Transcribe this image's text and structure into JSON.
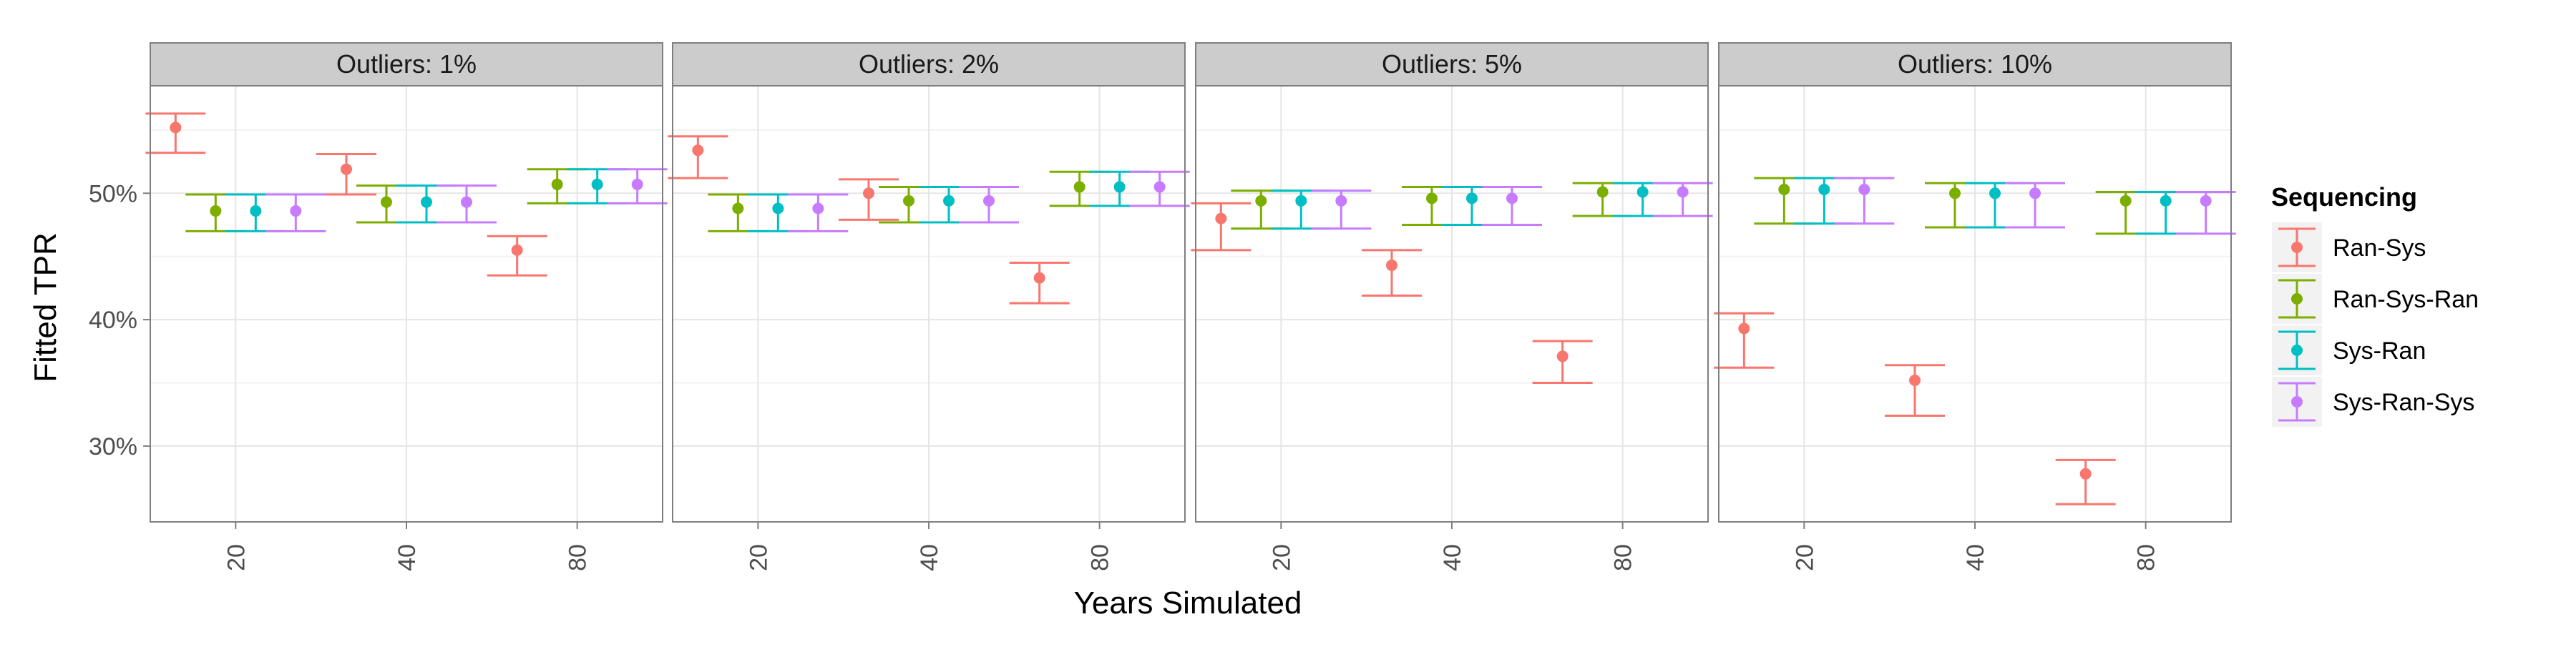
{
  "chart_data": {
    "type": "errorbar",
    "ylabel": "Fitted TPR",
    "xlabel": "Years Simulated",
    "ylim": [
      0.24,
      0.585
    ],
    "y_ticks": [
      0.3,
      0.4,
      0.5
    ],
    "y_tick_labels": [
      "30%",
      "40%",
      "50%"
    ],
    "categories": [
      "20",
      "40",
      "80"
    ],
    "grid": true,
    "legend": {
      "title": "Sequencing",
      "position": "right"
    },
    "colors": {
      "Ran-Sys": "#F8766D",
      "Ran-Sys-Ran": "#7CAE00",
      "Sys-Ran": "#00BFC4",
      "Sys-Ran-Sys": "#C77CFF"
    },
    "panels": [
      {
        "label": "Outliers: 1%",
        "series": [
          {
            "name": "Ran-Sys",
            "points": [
              {
                "x": "20",
                "y": 0.552,
                "lo": 0.532,
                "hi": 0.563
              },
              {
                "x": "40",
                "y": 0.519,
                "lo": 0.499,
                "hi": 0.531
              },
              {
                "x": "80",
                "y": 0.455,
                "lo": 0.435,
                "hi": 0.466
              }
            ]
          },
          {
            "name": "Ran-Sys-Ran",
            "points": [
              {
                "x": "20",
                "y": 0.486,
                "lo": 0.47,
                "hi": 0.499
              },
              {
                "x": "40",
                "y": 0.493,
                "lo": 0.477,
                "hi": 0.506
              },
              {
                "x": "80",
                "y": 0.507,
                "lo": 0.492,
                "hi": 0.519
              }
            ]
          },
          {
            "name": "Sys-Ran",
            "points": [
              {
                "x": "20",
                "y": 0.486,
                "lo": 0.47,
                "hi": 0.499
              },
              {
                "x": "40",
                "y": 0.493,
                "lo": 0.477,
                "hi": 0.506
              },
              {
                "x": "80",
                "y": 0.507,
                "lo": 0.492,
                "hi": 0.519
              }
            ]
          },
          {
            "name": "Sys-Ran-Sys",
            "points": [
              {
                "x": "20",
                "y": 0.486,
                "lo": 0.47,
                "hi": 0.499
              },
              {
                "x": "40",
                "y": 0.493,
                "lo": 0.477,
                "hi": 0.506
              },
              {
                "x": "80",
                "y": 0.507,
                "lo": 0.492,
                "hi": 0.519
              }
            ]
          }
        ]
      },
      {
        "label": "Outliers: 2%",
        "series": [
          {
            "name": "Ran-Sys",
            "points": [
              {
                "x": "20",
                "y": 0.534,
                "lo": 0.512,
                "hi": 0.545
              },
              {
                "x": "40",
                "y": 0.5,
                "lo": 0.479,
                "hi": 0.511
              },
              {
                "x": "80",
                "y": 0.433,
                "lo": 0.413,
                "hi": 0.445
              }
            ]
          },
          {
            "name": "Ran-Sys-Ran",
            "points": [
              {
                "x": "20",
                "y": 0.488,
                "lo": 0.47,
                "hi": 0.499
              },
              {
                "x": "40",
                "y": 0.494,
                "lo": 0.477,
                "hi": 0.505
              },
              {
                "x": "80",
                "y": 0.505,
                "lo": 0.49,
                "hi": 0.517
              }
            ]
          },
          {
            "name": "Sys-Ran",
            "points": [
              {
                "x": "20",
                "y": 0.488,
                "lo": 0.47,
                "hi": 0.499
              },
              {
                "x": "40",
                "y": 0.494,
                "lo": 0.477,
                "hi": 0.505
              },
              {
                "x": "80",
                "y": 0.505,
                "lo": 0.49,
                "hi": 0.517
              }
            ]
          },
          {
            "name": "Sys-Ran-Sys",
            "points": [
              {
                "x": "20",
                "y": 0.488,
                "lo": 0.47,
                "hi": 0.499
              },
              {
                "x": "40",
                "y": 0.494,
                "lo": 0.477,
                "hi": 0.505
              },
              {
                "x": "80",
                "y": 0.505,
                "lo": 0.49,
                "hi": 0.517
              }
            ]
          }
        ]
      },
      {
        "label": "Outliers: 5%",
        "series": [
          {
            "name": "Ran-Sys",
            "points": [
              {
                "x": "20",
                "y": 0.48,
                "lo": 0.455,
                "hi": 0.492
              },
              {
                "x": "40",
                "y": 0.443,
                "lo": 0.419,
                "hi": 0.455
              },
              {
                "x": "80",
                "y": 0.371,
                "lo": 0.35,
                "hi": 0.383
              }
            ]
          },
          {
            "name": "Ran-Sys-Ran",
            "points": [
              {
                "x": "20",
                "y": 0.494,
                "lo": 0.472,
                "hi": 0.502
              },
              {
                "x": "40",
                "y": 0.496,
                "lo": 0.475,
                "hi": 0.505
              },
              {
                "x": "80",
                "y": 0.501,
                "lo": 0.482,
                "hi": 0.508
              }
            ]
          },
          {
            "name": "Sys-Ran",
            "points": [
              {
                "x": "20",
                "y": 0.494,
                "lo": 0.472,
                "hi": 0.502
              },
              {
                "x": "40",
                "y": 0.496,
                "lo": 0.475,
                "hi": 0.505
              },
              {
                "x": "80",
                "y": 0.501,
                "lo": 0.482,
                "hi": 0.508
              }
            ]
          },
          {
            "name": "Sys-Ran-Sys",
            "points": [
              {
                "x": "20",
                "y": 0.494,
                "lo": 0.472,
                "hi": 0.502
              },
              {
                "x": "40",
                "y": 0.496,
                "lo": 0.475,
                "hi": 0.505
              },
              {
                "x": "80",
                "y": 0.501,
                "lo": 0.482,
                "hi": 0.508
              }
            ]
          }
        ]
      },
      {
        "label": "Outliers: 10%",
        "series": [
          {
            "name": "Ran-Sys",
            "points": [
              {
                "x": "20",
                "y": 0.393,
                "lo": 0.362,
                "hi": 0.405
              },
              {
                "x": "40",
                "y": 0.352,
                "lo": 0.324,
                "hi": 0.364
              },
              {
                "x": "80",
                "y": 0.278,
                "lo": 0.254,
                "hi": 0.289
              }
            ]
          },
          {
            "name": "Ran-Sys-Ran",
            "points": [
              {
                "x": "20",
                "y": 0.503,
                "lo": 0.476,
                "hi": 0.512
              },
              {
                "x": "40",
                "y": 0.5,
                "lo": 0.473,
                "hi": 0.508
              },
              {
                "x": "80",
                "y": 0.494,
                "lo": 0.468,
                "hi": 0.501
              }
            ]
          },
          {
            "name": "Sys-Ran",
            "points": [
              {
                "x": "20",
                "y": 0.503,
                "lo": 0.476,
                "hi": 0.512
              },
              {
                "x": "40",
                "y": 0.5,
                "lo": 0.473,
                "hi": 0.508
              },
              {
                "x": "80",
                "y": 0.494,
                "lo": 0.468,
                "hi": 0.501
              }
            ]
          },
          {
            "name": "Sys-Ran-Sys",
            "points": [
              {
                "x": "20",
                "y": 0.503,
                "lo": 0.476,
                "hi": 0.512
              },
              {
                "x": "40",
                "y": 0.5,
                "lo": 0.473,
                "hi": 0.508
              },
              {
                "x": "80",
                "y": 0.494,
                "lo": 0.468,
                "hi": 0.501
              }
            ]
          }
        ]
      }
    ]
  }
}
